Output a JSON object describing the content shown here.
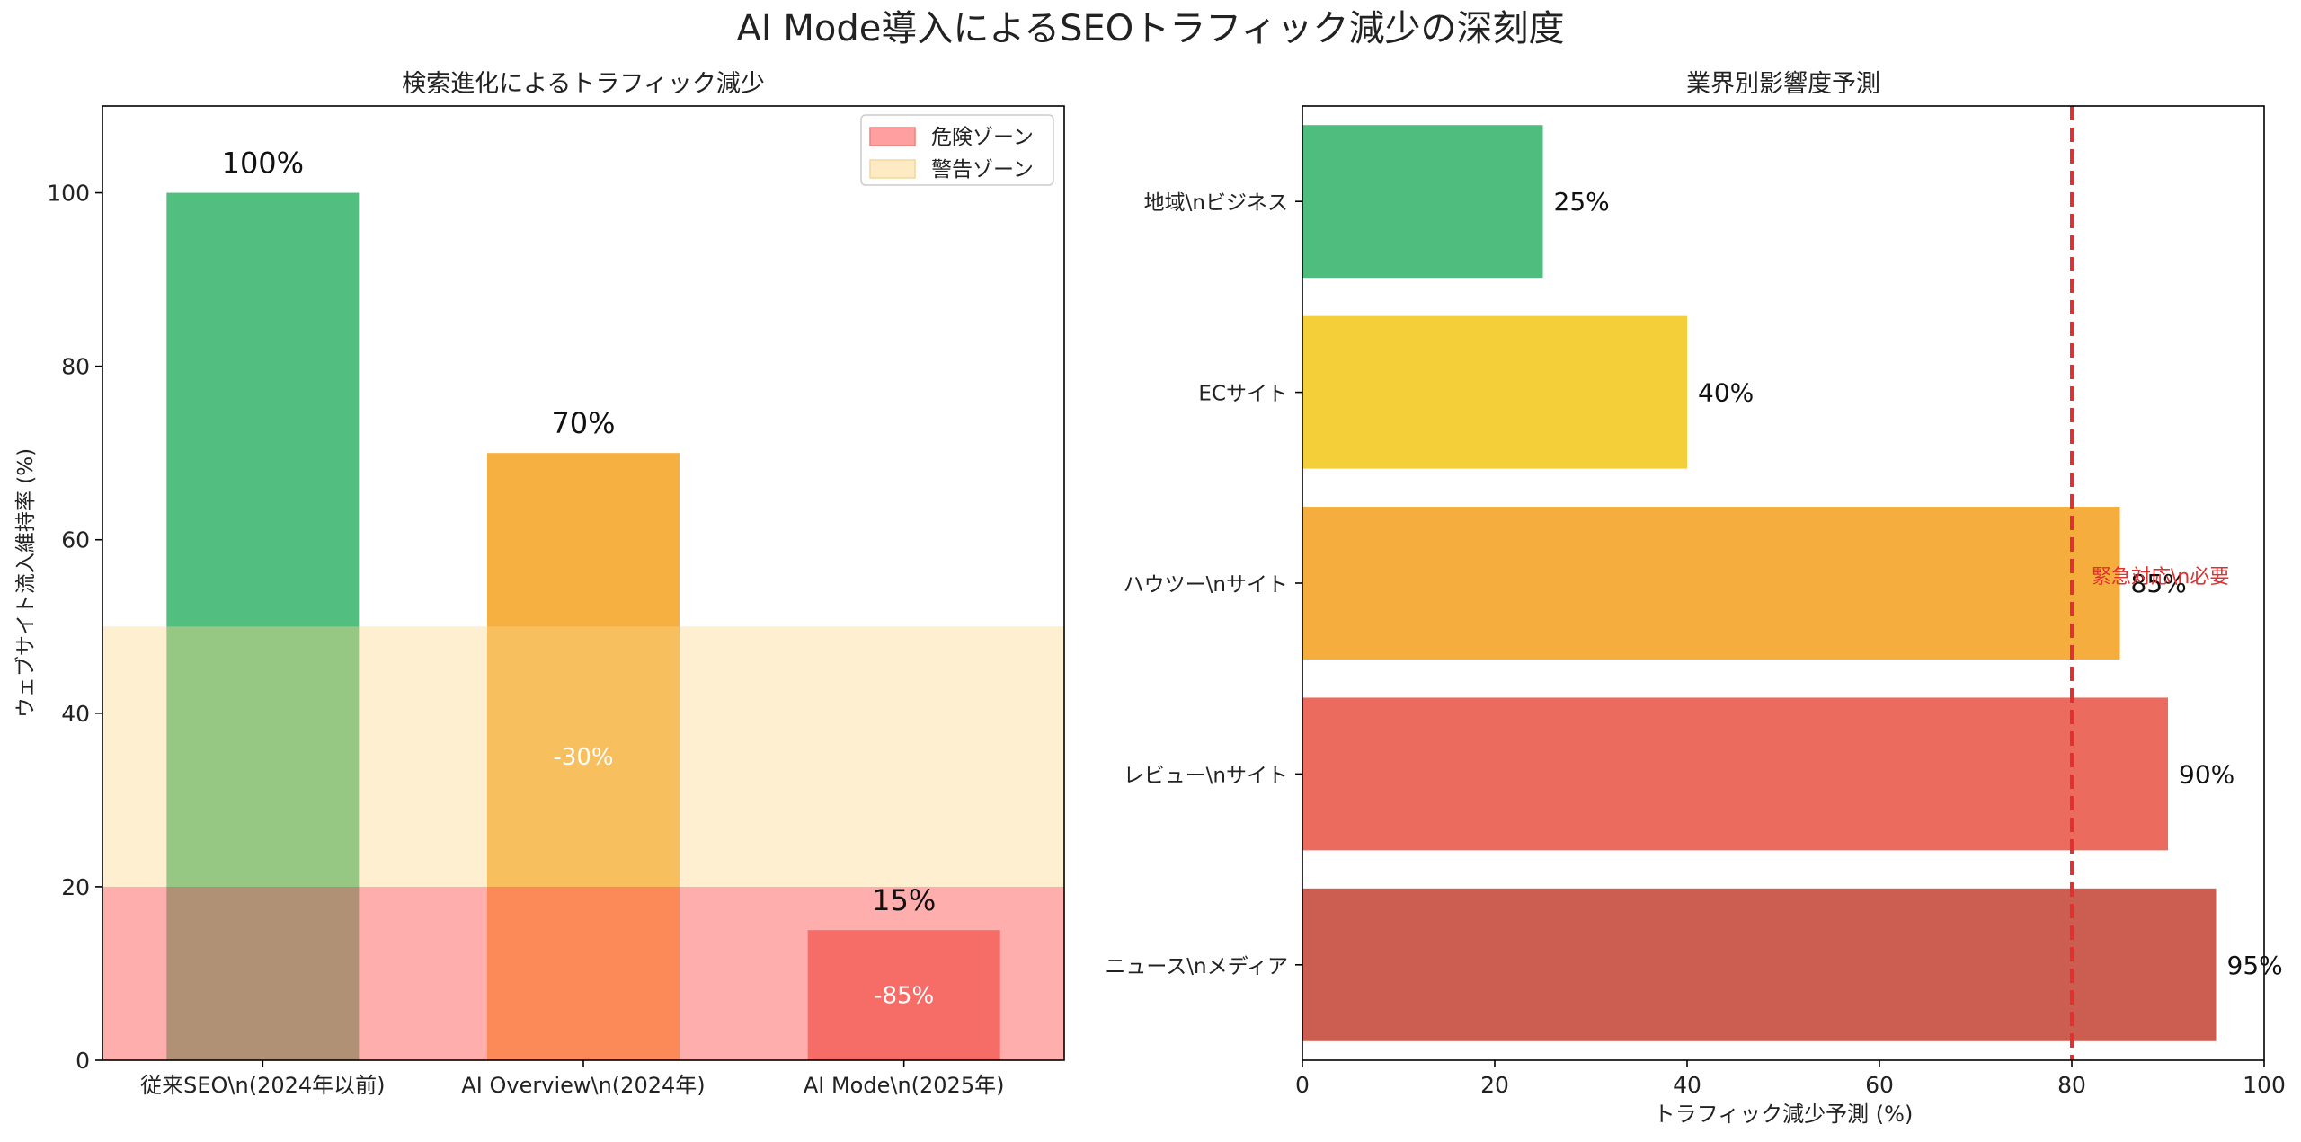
{
  "suptitle": "AI Mode導入によるSEOトラフィック減少の深刻度",
  "chart_data": [
    {
      "type": "bar",
      "title": "検索進化によるトラフィック減少",
      "ylabel": "ウェブサイト流入維持率 (%)",
      "xlabel": "",
      "categories": [
        "従来SEO\\n(2024年以前)",
        "AI Overview\\n(2024年)",
        "AI Mode\\n(2025年)"
      ],
      "values": [
        100,
        70,
        15
      ],
      "value_labels": [
        "100%",
        "70%",
        "15%"
      ],
      "change_labels": [
        "",
        "-30%",
        "-85%"
      ],
      "colors": [
        "#27ae60",
        "#f39c12",
        "#e74c3c"
      ],
      "ylim": [
        0,
        110
      ],
      "yticks": [
        0,
        20,
        40,
        60,
        80,
        100
      ],
      "zones": [
        {
          "name": "危険ゾーン",
          "from": 0,
          "to": 20,
          "color": "#ff6b6b"
        },
        {
          "name": "警告ゾーン",
          "from": 20,
          "to": 50,
          "color": "#fdd78a"
        }
      ],
      "legend": "upper-right"
    },
    {
      "type": "barh",
      "title": "業界別影響度予測",
      "xlabel": "トラフィック減少予測 (%)",
      "ylabel": "",
      "categories": [
        "ニュース\\nメディア",
        "レビュー\\nサイト",
        "ハウツー\\nサイト",
        "ECサイト",
        "地域\\nビジネス"
      ],
      "values": [
        95,
        90,
        85,
        40,
        25
      ],
      "value_labels": [
        "95%",
        "90%",
        "85%",
        "40%",
        "25%"
      ],
      "colors": [
        "#c0392b",
        "#e74c3c",
        "#f39c12",
        "#f1c40f",
        "#27ae60"
      ],
      "xlim": [
        0,
        100
      ],
      "xticks": [
        0,
        20,
        40,
        60,
        80,
        100
      ],
      "threshold": {
        "value": 80,
        "label": "緊急対応\\n必要",
        "color": "#e03030"
      }
    }
  ]
}
